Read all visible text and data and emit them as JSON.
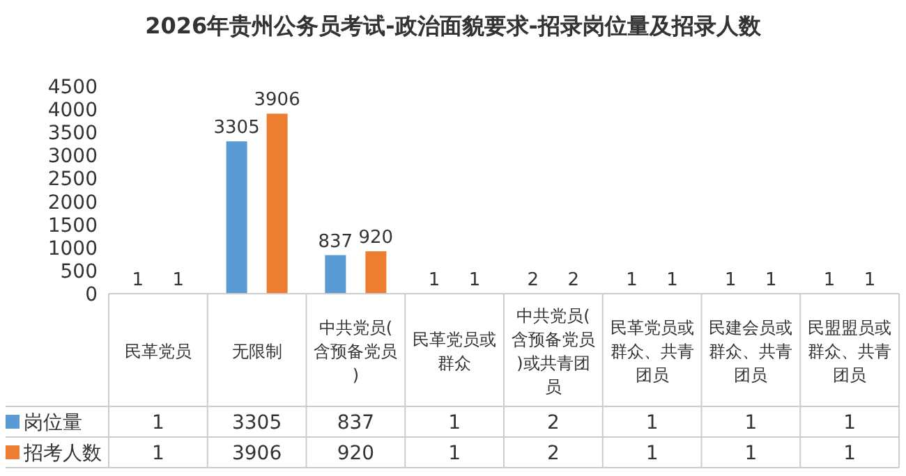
{
  "chart_data": {
    "type": "bar",
    "title": "2026年贵州公务员考试-政治面貌要求-招录岗位量及招录人数",
    "categories": [
      "民革党员",
      "无限制",
      "中共党员(含预备党员)",
      "民革党员或群众",
      "中共党员(含预备党员)或共青团员",
      "民革党员或群众、共青团员",
      "民建会员或群众、共青团员",
      "民盟盟员或群众、共青团员"
    ],
    "series": [
      {
        "name": "岗位量",
        "color": "#5b9bd5",
        "values": [
          1,
          3305,
          837,
          1,
          2,
          1,
          1,
          1
        ],
        "value_labels": [
          "1",
          "3305",
          "837",
          "1",
          "2",
          "1",
          "1",
          "1"
        ]
      },
      {
        "name": "招考人数",
        "color": "#ed7d31",
        "values": [
          1,
          3906,
          920,
          1,
          2,
          1,
          1,
          1
        ],
        "value_labels": [
          "1",
          "3906",
          "920",
          "1",
          "2",
          "1",
          "1",
          "1"
        ]
      }
    ],
    "ylim": [
      0,
      4500
    ],
    "yticks": [
      0,
      500,
      1000,
      1500,
      2000,
      2500,
      3000,
      3500,
      4000,
      4500
    ],
    "data_labels": true,
    "grid": false,
    "legend": "bottom"
  }
}
